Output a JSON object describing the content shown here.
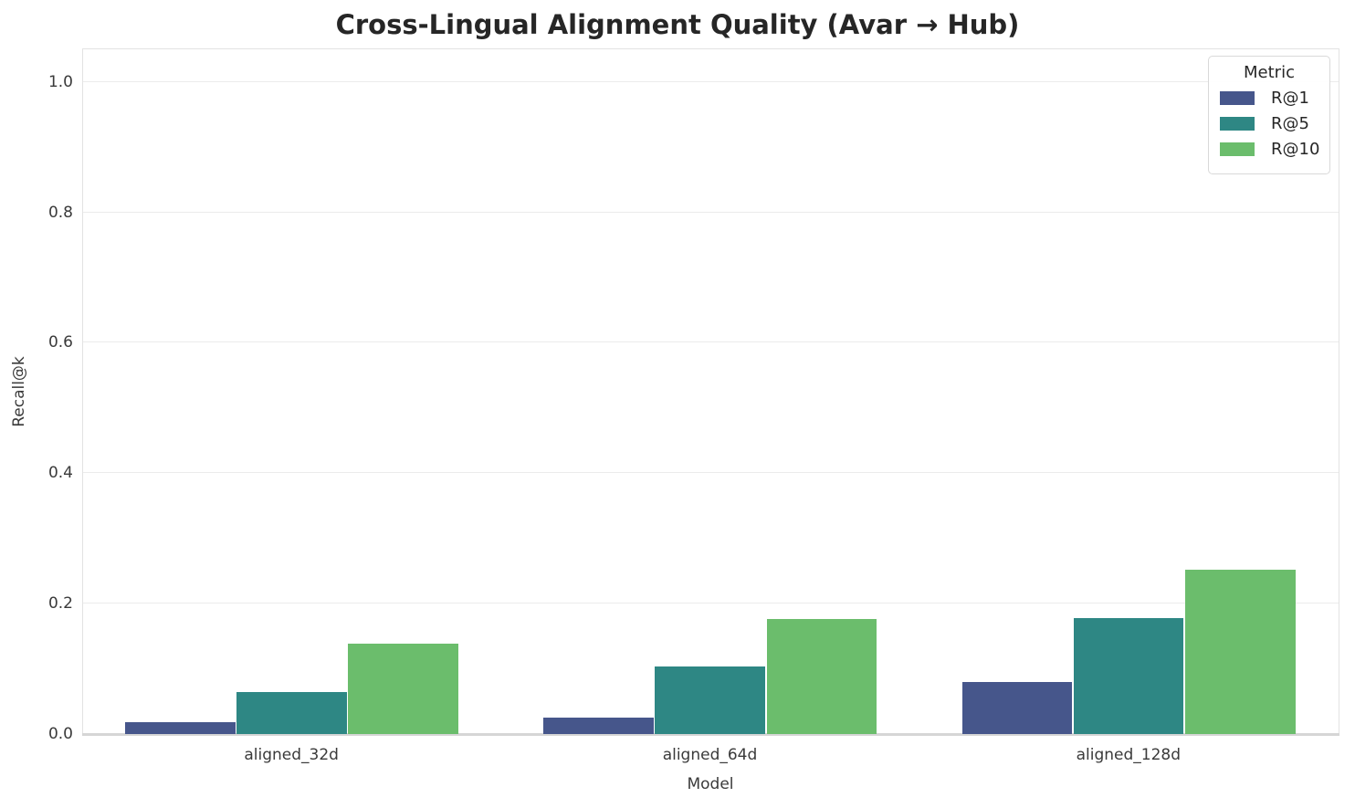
{
  "title": "Cross-Lingual Alignment Quality (Avar → Hub)",
  "legend": {
    "title": "Metric"
  },
  "chart_data": {
    "type": "bar",
    "title": "Cross-Lingual Alignment Quality (Avar → Hub)",
    "categories": [
      "aligned_32d",
      "aligned_64d",
      "aligned_128d"
    ],
    "series": [
      {
        "name": "R@1",
        "color": "#46568b",
        "values": [
          0.018,
          0.025,
          0.08
        ]
      },
      {
        "name": "R@5",
        "color": "#2e8784",
        "values": [
          0.064,
          0.103,
          0.178
        ]
      },
      {
        "name": "R@10",
        "color": "#6bbd6c",
        "values": [
          0.138,
          0.176,
          0.252
        ]
      }
    ],
    "xlabel": "Model",
    "ylabel": "Recall@k",
    "yticks": [
      0.0,
      0.2,
      0.4,
      0.6,
      0.8,
      1.0
    ],
    "ytick_labels": [
      "0.0",
      "0.2",
      "0.4",
      "0.6",
      "0.8",
      "1.0"
    ],
    "ylim": [
      0,
      1.05
    ],
    "grid": true,
    "legend_title": "Metric",
    "legend_position": "upper right"
  }
}
